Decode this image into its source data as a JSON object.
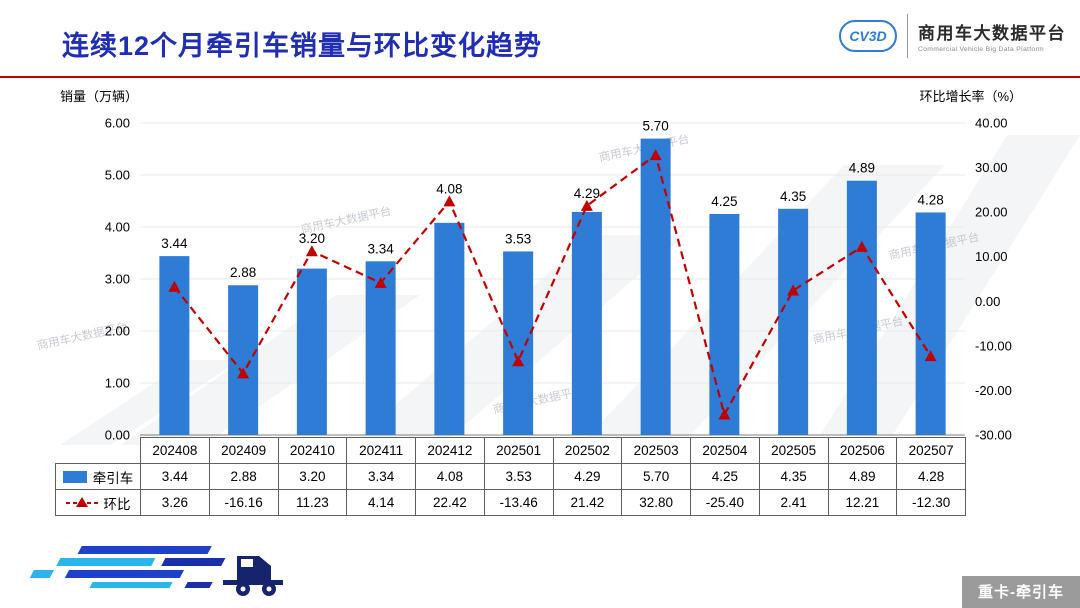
{
  "header": {
    "title": "连续12个月牵引车销量与环比变化趋势",
    "logo": {
      "icon_label": "CV3D",
      "name": "商用车大数据平台",
      "subtitle": "Commercial Vehicle Big Data Platform"
    }
  },
  "axis_units": {
    "left": "销量（万辆）",
    "right": "环比增长率（%）"
  },
  "chart_data": {
    "type": "bar+line",
    "title": "连续12个月牵引车销量与环比变化趋势",
    "categories": [
      "202408",
      "202409",
      "202410",
      "202411",
      "202412",
      "202501",
      "202502",
      "202503",
      "202504",
      "202505",
      "202506",
      "202507"
    ],
    "series": [
      {
        "name": "牵引车",
        "type": "bar",
        "axis": "left",
        "color": "#2E7CD5",
        "values": [
          3.44,
          2.88,
          3.2,
          3.34,
          4.08,
          3.53,
          4.29,
          5.7,
          4.25,
          4.35,
          4.89,
          4.28
        ]
      },
      {
        "name": "环比",
        "type": "line",
        "axis": "right",
        "color": "#C00000",
        "dashed": true,
        "marker": "triangle",
        "values": [
          3.26,
          -16.16,
          11.23,
          4.14,
          22.42,
          -13.46,
          21.42,
          32.8,
          -25.4,
          2.41,
          12.21,
          -12.3
        ]
      }
    ],
    "left_axis": {
      "label": "销量（万辆）",
      "min": 0,
      "max": 6,
      "step": 1,
      "ticks": [
        "0.00",
        "1.00",
        "2.00",
        "3.00",
        "4.00",
        "5.00",
        "6.00"
      ]
    },
    "right_axis": {
      "label": "环比增长率（%）",
      "min": -30,
      "max": 40,
      "step": 10,
      "ticks": [
        "-30.00",
        "-20.00",
        "-10.00",
        "0.00",
        "10.00",
        "20.00",
        "30.00",
        "40.00"
      ]
    },
    "grid": true,
    "legend_position": "table-below"
  },
  "watermark": "商用车大数据平台",
  "footer": {
    "badge": "重卡-牵引车"
  }
}
